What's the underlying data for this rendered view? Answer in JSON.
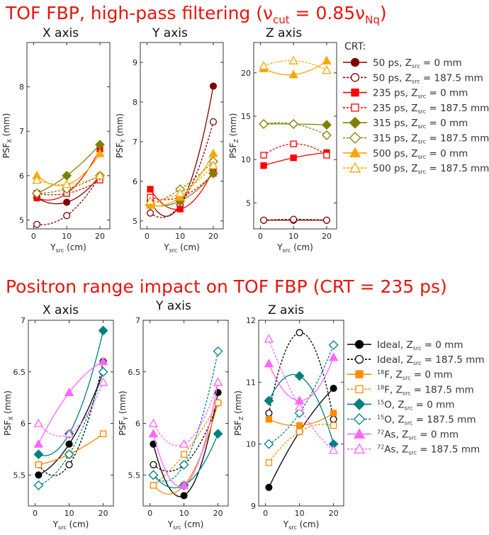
{
  "sections": [
    {
      "title": "TOF FBP, high-pass filtering (ν",
      "title_sub1": "cut",
      "title_mid": " = 0.85ν",
      "title_sub2": "Nq",
      "title_end": ")",
      "legend_title": "CRT:",
      "series_styles": [
        {
          "name": "50 ps, Z",
          "sub": "src",
          "rest": " = 0 mm",
          "color": "#800000",
          "marker": "circle",
          "filled": true,
          "dashed": false
        },
        {
          "name": "50 ps, Z",
          "sub": "src",
          "rest": " = 187.5 mm",
          "color": "#800000",
          "marker": "circle",
          "filled": false,
          "dashed": true
        },
        {
          "name": "235 ps, Z",
          "sub": "src",
          "rest": " = 0 mm",
          "color": "#ff0000",
          "marker": "square",
          "filled": true,
          "dashed": false
        },
        {
          "name": "235 ps, Z",
          "sub": "src",
          "rest": " = 187.5 mm",
          "color": "#ff0000",
          "marker": "square",
          "filled": false,
          "dashed": true
        },
        {
          "name": "315 ps, Z",
          "sub": "src",
          "rest": " = 0 mm",
          "color": "#808000",
          "marker": "diamond",
          "filled": true,
          "dashed": false
        },
        {
          "name": "315 ps, Z",
          "sub": "src",
          "rest": " = 187.5 mm",
          "color": "#808000",
          "marker": "diamond",
          "filled": false,
          "dashed": true
        },
        {
          "name": "500 ps, Z",
          "sub": "src",
          "rest": " = 0 mm",
          "color": "#ffa500",
          "marker": "triangle",
          "filled": true,
          "dashed": false
        },
        {
          "name": "500 ps, Z",
          "sub": "src",
          "rest": " = 187.5 mm",
          "color": "#ffa500",
          "marker": "triangle",
          "filled": false,
          "dashed": true
        }
      ]
    },
    {
      "title": "Positron range impact on TOF FBP (CRT = 235 ps)",
      "legend_title": "",
      "series_styles": [
        {
          "name": "Ideal, Z",
          "sup": "",
          "sub": "src",
          "rest": " = 0 mm",
          "color": "#000000",
          "marker": "circle",
          "filled": true,
          "dashed": false
        },
        {
          "name": "Ideal, Z",
          "sup": "",
          "sub": "src",
          "rest": " = 187.5 mm",
          "color": "#000000",
          "marker": "circle",
          "filled": false,
          "dashed": true
        },
        {
          "name": "F, Z",
          "sup": "18",
          "sub": "src",
          "rest": " = 0 mm",
          "color": "#ff8c00",
          "marker": "square",
          "filled": true,
          "dashed": false
        },
        {
          "name": "F, Z",
          "sup": "18",
          "sub": "src",
          "rest": " = 187.5 mm",
          "color": "#ff8c00",
          "marker": "square",
          "filled": false,
          "dashed": true
        },
        {
          "name": "O, Z",
          "sup": "15",
          "sub": "src",
          "rest": " = 0 mm",
          "color": "#008080",
          "marker": "diamond",
          "filled": true,
          "dashed": false
        },
        {
          "name": "O, Z",
          "sup": "15",
          "sub": "src",
          "rest": " = 187.5 mm",
          "color": "#008080",
          "marker": "diamond",
          "filled": false,
          "dashed": true
        },
        {
          "name": "As, Z",
          "sup": "72",
          "sub": "src",
          "rest": " = 0 mm",
          "color": "#ff66ff",
          "marker": "triangle",
          "filled": true,
          "dashed": false
        },
        {
          "name": "As, Z",
          "sup": "72",
          "sub": "src",
          "rest": " = 187.5 mm",
          "color": "#ff66ff",
          "marker": "triangle",
          "filled": false,
          "dashed": true
        }
      ]
    }
  ],
  "chart_data": [
    {
      "type": "line",
      "section": 0,
      "title": "X axis",
      "xlabel": "Y",
      "xlabel_sub": "src",
      "xlabel_rest": " (cm)",
      "ylabel": "PSF",
      "ylabel_sub": "X",
      "ylabel_rest": " (mm)",
      "x": [
        1,
        10,
        20
      ],
      "xlim": [
        -2,
        23
      ],
      "xticks": [
        0,
        10,
        20
      ],
      "ylim": [
        4.8,
        9.0
      ],
      "yticks": [
        5,
        6,
        7,
        8
      ],
      "series": [
        {
          "values": [
            5.5,
            5.4,
            6.0
          ]
        },
        {
          "values": [
            4.9,
            5.1,
            6.0
          ]
        },
        {
          "values": [
            5.5,
            5.6,
            6.6
          ]
        },
        {
          "values": [
            5.6,
            5.6,
            5.9
          ]
        },
        {
          "values": [
            5.6,
            6.0,
            6.7
          ]
        },
        {
          "values": [
            5.6,
            5.7,
            6.0
          ]
        },
        {
          "values": [
            6.0,
            5.8,
            6.5
          ]
        },
        {
          "values": [
            5.9,
            5.8,
            6.0
          ]
        }
      ]
    },
    {
      "type": "line",
      "section": 0,
      "title": "Y axis",
      "xlabel": "Y",
      "xlabel_sub": "src",
      "xlabel_rest": " (cm)",
      "ylabel": "PSF",
      "ylabel_sub": "Y",
      "ylabel_rest": " (mm)",
      "x": [
        1,
        10,
        20
      ],
      "xlim": [
        -2,
        23
      ],
      "xticks": [
        0,
        10,
        20
      ],
      "ylim": [
        4.8,
        9.5
      ],
      "yticks": [
        5,
        6,
        7,
        8,
        9
      ],
      "series": [
        {
          "values": [
            5.5,
            5.4,
            8.4
          ]
        },
        {
          "values": [
            5.2,
            5.4,
            7.5
          ]
        },
        {
          "values": [
            5.8,
            5.3,
            6.3
          ]
        },
        {
          "values": [
            5.6,
            5.6,
            6.2
          ]
        },
        {
          "values": [
            5.4,
            5.5,
            6.2
          ]
        },
        {
          "values": [
            5.4,
            5.8,
            6.5
          ]
        },
        {
          "values": [
            5.4,
            5.6,
            6.7
          ]
        },
        {
          "values": [
            5.5,
            5.7,
            6.4
          ]
        }
      ]
    },
    {
      "type": "line",
      "section": 0,
      "title": "Z axis",
      "xlabel": "Y",
      "xlabel_sub": "src",
      "xlabel_rest": " (cm)",
      "ylabel": "PSF",
      "ylabel_sub": "Z",
      "ylabel_rest": " (mm)",
      "x": [
        1,
        10,
        20
      ],
      "xlim": [
        -2,
        23
      ],
      "xticks": [
        0,
        10,
        20
      ],
      "ylim": [
        2.0,
        23.5
      ],
      "yticks": [
        5,
        10,
        15,
        20
      ],
      "series": [
        {
          "values": [
            3.0,
            3.0,
            3.0
          ]
        },
        {
          "values": [
            3.0,
            3.1,
            3.0
          ]
        },
        {
          "values": [
            9.3,
            10.2,
            10.8
          ]
        },
        {
          "values": [
            10.5,
            11.8,
            10.5
          ]
        },
        {
          "values": [
            14.1,
            14.1,
            14.0
          ]
        },
        {
          "values": [
            14.1,
            14.1,
            12.8
          ]
        },
        {
          "values": [
            20.5,
            19.8,
            21.4
          ]
        },
        {
          "values": [
            20.8,
            21.4,
            20.3
          ]
        }
      ]
    },
    {
      "type": "line",
      "section": 1,
      "title": "X axis",
      "xlabel": "Y",
      "xlabel_sub": "src",
      "xlabel_rest": " (cm)",
      "ylabel": "PSF",
      "ylabel_sub": "X",
      "ylabel_rest": " (mm)",
      "x": [
        1,
        10,
        20
      ],
      "xlim": [
        -2,
        23
      ],
      "xticks": [
        0,
        10,
        20
      ],
      "ylim": [
        5.2,
        7.0
      ],
      "yticks": [
        5.5,
        6,
        6.5,
        7
      ],
      "series": [
        {
          "values": [
            5.5,
            5.8,
            6.5
          ]
        },
        {
          "values": [
            5.6,
            5.6,
            6.6
          ]
        },
        {
          "values": [
            5.6,
            5.7,
            5.9
          ]
        },
        {
          "values": [
            5.6,
            5.7,
            5.9
          ]
        },
        {
          "values": [
            5.7,
            5.9,
            6.9
          ]
        },
        {
          "values": [
            5.4,
            5.7,
            6.5
          ]
        },
        {
          "values": [
            5.8,
            6.3,
            6.6
          ]
        },
        {
          "values": [
            6.0,
            5.9,
            6.4
          ]
        }
      ]
    },
    {
      "type": "line",
      "section": 1,
      "title": "Y axis",
      "xlabel": "Y",
      "xlabel_sub": "src",
      "xlabel_rest": " (cm)",
      "ylabel": "PSF",
      "ylabel_sub": "Y",
      "ylabel_rest": " (mm)",
      "x": [
        1,
        10,
        20
      ],
      "xlim": [
        -2,
        23
      ],
      "xticks": [
        0,
        10,
        20
      ],
      "ylim": [
        5.2,
        7.0
      ],
      "yticks": [
        5.5,
        6,
        6.5,
        7
      ],
      "series": [
        {
          "values": [
            5.8,
            5.3,
            6.3
          ]
        },
        {
          "values": [
            5.6,
            5.6,
            6.2
          ]
        },
        {
          "values": [
            5.4,
            5.4,
            6.2
          ]
        },
        {
          "values": [
            5.4,
            5.7,
            6.2
          ]
        },
        {
          "values": [
            5.5,
            5.4,
            5.9
          ]
        },
        {
          "values": [
            5.5,
            5.6,
            6.7
          ]
        },
        {
          "values": [
            5.9,
            5.4,
            6.4
          ]
        },
        {
          "values": [
            6.0,
            5.8,
            6.4
          ]
        }
      ]
    },
    {
      "type": "line",
      "section": 1,
      "title": "Z axis",
      "xlabel": "Y",
      "xlabel_sub": "src",
      "xlabel_rest": " (cm)",
      "ylabel": "PSF",
      "ylabel_sub": "Z",
      "ylabel_rest": " (mm)",
      "x": [
        1,
        10,
        20
      ],
      "xlim": [
        -2,
        23
      ],
      "xticks": [
        0,
        10,
        20
      ],
      "ylim": [
        9.0,
        12.0
      ],
      "yticks": [
        9,
        10,
        11,
        12
      ],
      "series": [
        {
          "values": [
            9.3,
            10.2,
            10.9
          ]
        },
        {
          "values": [
            10.5,
            11.8,
            10.4
          ]
        },
        {
          "values": [
            10.4,
            10.3,
            10.5
          ]
        },
        {
          "values": [
            9.7,
            10.2,
            10.3
          ]
        },
        {
          "values": [
            10.7,
            11.1,
            10.0
          ]
        },
        {
          "values": [
            10.0,
            10.5,
            11.6
          ]
        },
        {
          "values": [
            11.3,
            10.7,
            11.4
          ]
        },
        {
          "values": [
            11.7,
            10.6,
            9.9
          ]
        }
      ]
    }
  ]
}
